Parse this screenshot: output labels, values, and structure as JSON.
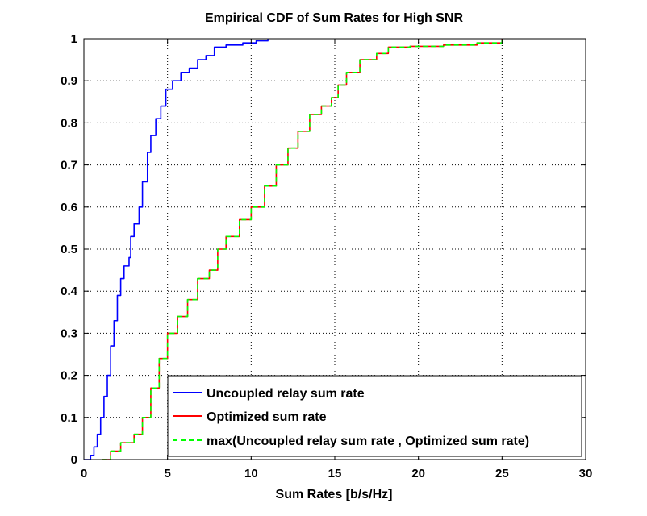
{
  "chart_data": {
    "type": "line",
    "title": "Empirical CDF of Sum Rates for High SNR",
    "xlabel": "Sum Rates [b/s/Hz]",
    "ylabel": "",
    "xlim": [
      0,
      30
    ],
    "ylim": [
      0,
      1
    ],
    "xticks": [
      "0",
      "5",
      "10",
      "15",
      "20",
      "25",
      "30"
    ],
    "yticks": [
      "0",
      "0.1",
      "0.2",
      "0.3",
      "0.4",
      "0.5",
      "0.6",
      "0.7",
      "0.8",
      "0.9",
      "1"
    ],
    "grid": true,
    "legend_position": "bottom-right",
    "series": [
      {
        "name": "Uncoupled relay sum rate",
        "color": "#0000ff",
        "style": "solid",
        "points": [
          [
            0,
            0
          ],
          [
            0.4,
            0.01
          ],
          [
            0.6,
            0.03
          ],
          [
            0.8,
            0.06
          ],
          [
            1.0,
            0.1
          ],
          [
            1.2,
            0.15
          ],
          [
            1.4,
            0.2
          ],
          [
            1.6,
            0.27
          ],
          [
            1.8,
            0.33
          ],
          [
            2.0,
            0.39
          ],
          [
            2.2,
            0.43
          ],
          [
            2.4,
            0.46
          ],
          [
            2.7,
            0.48
          ],
          [
            2.8,
            0.53
          ],
          [
            3.0,
            0.56
          ],
          [
            3.3,
            0.6
          ],
          [
            3.5,
            0.66
          ],
          [
            3.8,
            0.73
          ],
          [
            4.0,
            0.77
          ],
          [
            4.3,
            0.81
          ],
          [
            4.6,
            0.84
          ],
          [
            4.9,
            0.88
          ],
          [
            5.3,
            0.9
          ],
          [
            5.8,
            0.92
          ],
          [
            6.3,
            0.93
          ],
          [
            6.8,
            0.95
          ],
          [
            7.3,
            0.96
          ],
          [
            7.8,
            0.98
          ],
          [
            8.5,
            0.985
          ],
          [
            9.5,
            0.99
          ],
          [
            10.3,
            0.995
          ],
          [
            11.0,
            1.0
          ]
        ]
      },
      {
        "name": "Optimized sum rate",
        "color": "#ff0000",
        "style": "solid",
        "points": [
          [
            1.1,
            0
          ],
          [
            1.6,
            0.02
          ],
          [
            2.2,
            0.04
          ],
          [
            3.0,
            0.06
          ],
          [
            3.5,
            0.1
          ],
          [
            4.0,
            0.17
          ],
          [
            4.5,
            0.24
          ],
          [
            5.0,
            0.3
          ],
          [
            5.6,
            0.34
          ],
          [
            6.2,
            0.38
          ],
          [
            6.8,
            0.43
          ],
          [
            7.5,
            0.45
          ],
          [
            8.0,
            0.5
          ],
          [
            8.5,
            0.53
          ],
          [
            9.3,
            0.57
          ],
          [
            10.0,
            0.6
          ],
          [
            10.8,
            0.65
          ],
          [
            11.5,
            0.7
          ],
          [
            12.2,
            0.74
          ],
          [
            12.8,
            0.78
          ],
          [
            13.5,
            0.82
          ],
          [
            14.2,
            0.84
          ],
          [
            14.8,
            0.86
          ],
          [
            15.2,
            0.89
          ],
          [
            15.7,
            0.92
          ],
          [
            16.5,
            0.95
          ],
          [
            17.5,
            0.965
          ],
          [
            18.2,
            0.98
          ],
          [
            19.5,
            0.982
          ],
          [
            21.5,
            0.985
          ],
          [
            23.5,
            0.99
          ],
          [
            25.0,
            1.0
          ]
        ]
      },
      {
        "name": "max(Uncoupled relay sum rate , Optimized sum rate)",
        "color": "#00ff00",
        "style": "dashed",
        "points": [
          [
            1.1,
            0
          ],
          [
            1.6,
            0.02
          ],
          [
            2.2,
            0.04
          ],
          [
            3.0,
            0.06
          ],
          [
            3.5,
            0.1
          ],
          [
            4.0,
            0.17
          ],
          [
            4.5,
            0.24
          ],
          [
            5.0,
            0.3
          ],
          [
            5.6,
            0.34
          ],
          [
            6.2,
            0.38
          ],
          [
            6.8,
            0.43
          ],
          [
            7.5,
            0.45
          ],
          [
            8.0,
            0.5
          ],
          [
            8.5,
            0.53
          ],
          [
            9.3,
            0.57
          ],
          [
            10.0,
            0.6
          ],
          [
            10.8,
            0.65
          ],
          [
            11.5,
            0.7
          ],
          [
            12.2,
            0.74
          ],
          [
            12.8,
            0.78
          ],
          [
            13.5,
            0.82
          ],
          [
            14.2,
            0.84
          ],
          [
            14.8,
            0.86
          ],
          [
            15.2,
            0.89
          ],
          [
            15.7,
            0.92
          ],
          [
            16.5,
            0.95
          ],
          [
            17.5,
            0.965
          ],
          [
            18.2,
            0.98
          ],
          [
            19.5,
            0.982
          ],
          [
            21.5,
            0.985
          ],
          [
            23.5,
            0.99
          ],
          [
            25.0,
            1.0
          ]
        ]
      }
    ]
  }
}
